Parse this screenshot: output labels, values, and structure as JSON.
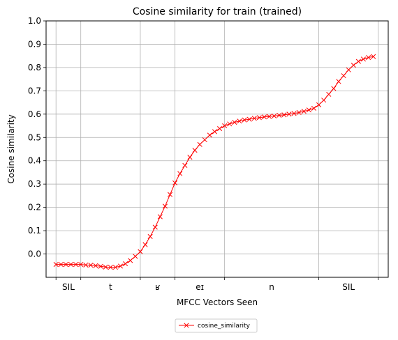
{
  "chart_data": {
    "type": "line",
    "title": "Cosine similarity for train (trained)",
    "xlabel": "MFCC Vectors Seen",
    "ylabel": "Cosine similarity",
    "ylim": [
      -0.1,
      1.0
    ],
    "yticks": [
      0.0,
      0.1,
      0.2,
      0.3,
      0.4,
      0.5,
      0.6,
      0.7,
      0.8,
      0.9,
      1.0
    ],
    "ytick_labels": [
      "0.0",
      "0.1",
      "0.2",
      "0.3",
      "0.4",
      "0.5",
      "0.6",
      "0.7",
      "0.8",
      "0.9",
      "1.0"
    ],
    "xlim": [
      -2,
      67
    ],
    "xgrid": [
      0,
      5,
      17,
      24,
      34,
      53,
      65
    ],
    "phone_labels": [
      {
        "label": "SIL",
        "x": 2.5
      },
      {
        "label": "t",
        "x": 11
      },
      {
        "label": "ʁ",
        "x": 20.5
      },
      {
        "label": "eɪ",
        "x": 29
      },
      {
        "label": "n",
        "x": 43.5
      },
      {
        "label": "SIL",
        "x": 59
      }
    ],
    "grid": true,
    "legend_position": "below",
    "series": [
      {
        "name": "cosine_similarity",
        "color": "#ff0000",
        "marker": "x",
        "x": [
          0,
          1,
          2,
          3,
          4,
          5,
          6,
          7,
          8,
          9,
          10,
          11,
          12,
          13,
          14,
          15,
          16,
          17,
          18,
          19,
          20,
          21,
          22,
          23,
          24,
          25,
          26,
          27,
          28,
          29,
          30,
          31,
          32,
          33,
          34,
          35,
          36,
          37,
          38,
          39,
          40,
          41,
          42,
          43,
          44,
          45,
          46,
          47,
          48,
          49,
          50,
          51,
          52,
          53,
          54,
          55,
          56,
          57,
          58,
          59,
          60,
          61,
          62,
          63,
          64
        ],
        "y": [
          -0.045,
          -0.045,
          -0.045,
          -0.045,
          -0.045,
          -0.045,
          -0.047,
          -0.048,
          -0.05,
          -0.053,
          -0.056,
          -0.057,
          -0.057,
          -0.052,
          -0.042,
          -0.028,
          -0.01,
          0.01,
          0.04,
          0.075,
          0.115,
          0.16,
          0.205,
          0.255,
          0.305,
          0.345,
          0.38,
          0.415,
          0.445,
          0.47,
          0.49,
          0.51,
          0.525,
          0.538,
          0.55,
          0.558,
          0.565,
          0.57,
          0.575,
          0.578,
          0.582,
          0.585,
          0.588,
          0.59,
          0.592,
          0.595,
          0.597,
          0.6,
          0.603,
          0.607,
          0.612,
          0.618,
          0.625,
          0.64,
          0.66,
          0.685,
          0.71,
          0.74,
          0.765,
          0.79,
          0.81,
          0.826,
          0.836,
          0.843,
          0.847
        ]
      }
    ]
  }
}
